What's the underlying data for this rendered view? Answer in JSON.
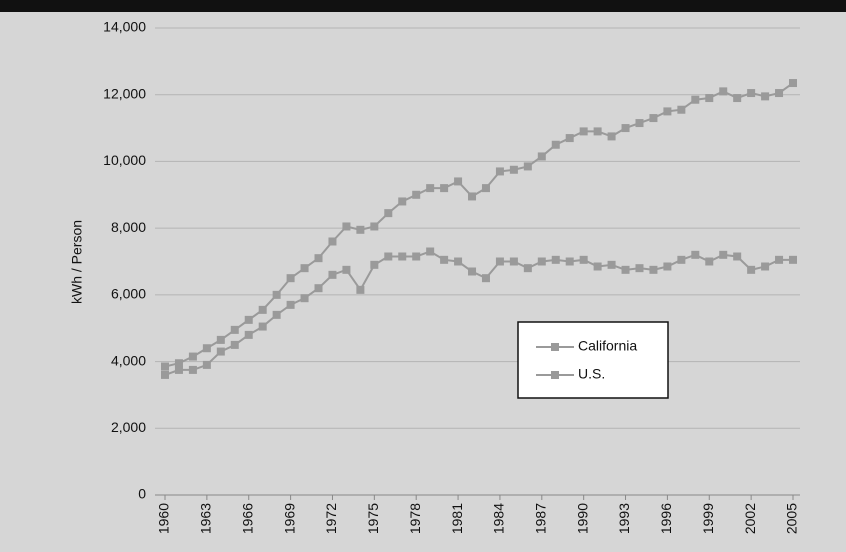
{
  "chart_data": {
    "type": "line",
    "y_label": "kWh / Person",
    "x": [
      1960,
      1961,
      1962,
      1963,
      1964,
      1965,
      1966,
      1967,
      1968,
      1969,
      1970,
      1971,
      1972,
      1973,
      1974,
      1975,
      1976,
      1977,
      1978,
      1979,
      1980,
      1981,
      1982,
      1983,
      1984,
      1985,
      1986,
      1987,
      1988,
      1989,
      1990,
      1991,
      1992,
      1993,
      1994,
      1995,
      1996,
      1997,
      1998,
      1999,
      2000,
      2001,
      2002,
      2003,
      2004,
      2005
    ],
    "series": [
      {
        "name": "California",
        "color": "#9a9a9a",
        "values": [
          3600,
          3750,
          3750,
          3900,
          4300,
          4500,
          4800,
          5050,
          5400,
          5700,
          5900,
          6200,
          6600,
          6750,
          6150,
          6900,
          7150,
          7150,
          7150,
          7300,
          7050,
          7000,
          6700,
          6500,
          7000,
          7000,
          6800,
          7000,
          7050,
          7000,
          7050,
          6850,
          6900,
          6750,
          6800,
          6750,
          6850,
          7050,
          7200,
          7000,
          7200,
          7150,
          6750,
          6850,
          7050,
          7050
        ]
      },
      {
        "name": "U.S.",
        "color": "#9a9a9a",
        "values": [
          3850,
          3950,
          4150,
          4400,
          4650,
          4950,
          5250,
          5550,
          6000,
          6500,
          6800,
          7100,
          7600,
          8050,
          7950,
          8050,
          8450,
          8800,
          9000,
          9200,
          9200,
          9400,
          8950,
          9200,
          9700,
          9750,
          9850,
          10150,
          10500,
          10700,
          10900,
          10900,
          10750,
          11000,
          11150,
          11300,
          11500,
          11550,
          11850,
          11900,
          12100,
          11900,
          12050,
          11950,
          12050,
          12350
        ]
      }
    ],
    "xlim": [
      1960,
      2005
    ],
    "xticks": [
      1960,
      1963,
      1966,
      1969,
      1972,
      1975,
      1978,
      1981,
      1984,
      1987,
      1990,
      1993,
      1996,
      1999,
      2002,
      2005
    ],
    "ylim": [
      0,
      14000
    ],
    "yticks": [
      0,
      {
        "value": 2000,
        "label": "2,000"
      },
      {
        "value": 4000,
        "label": "4,000"
      },
      {
        "value": 6000,
        "label": "6,000"
      },
      {
        "value": 8000,
        "label": "8,000"
      },
      {
        "value": 10000,
        "label": "10,000"
      },
      {
        "value": 12000,
        "label": "12,000"
      },
      {
        "value": 14000,
        "label": "14,000"
      }
    ],
    "grid": true
  }
}
